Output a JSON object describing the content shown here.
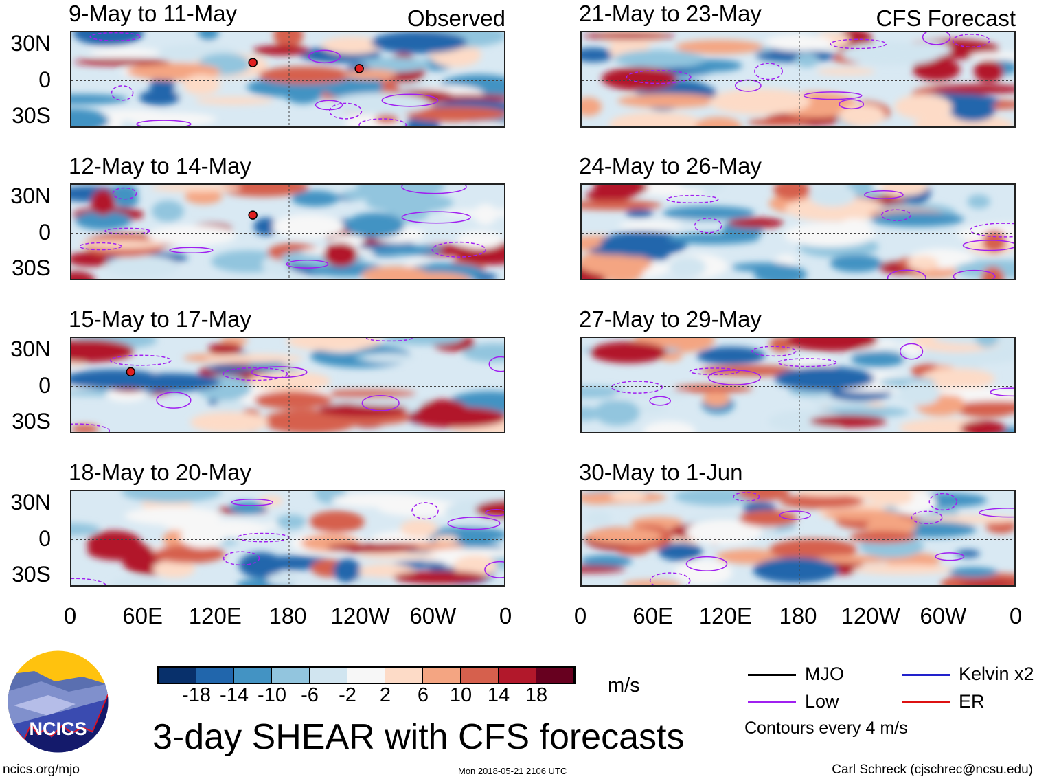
{
  "panels_left": [
    {
      "title": "9-May to 11-May",
      "label": "Observed",
      "storms": [
        {
          "lon": 150,
          "lat": 15
        },
        {
          "lon": 238,
          "lat": 10
        }
      ]
    },
    {
      "title": "12-May to 14-May",
      "label": "",
      "storms": [
        {
          "lon": 150,
          "lat": 15
        }
      ]
    },
    {
      "title": "15-May to 17-May",
      "label": "",
      "storms": [
        {
          "lon": 49,
          "lat": 12
        }
      ]
    },
    {
      "title": "18-May to 20-May",
      "label": "",
      "storms": []
    }
  ],
  "panels_right": [
    {
      "title": "21-May to 23-May",
      "label": "CFS Forecast"
    },
    {
      "title": "24-May to 26-May",
      "label": ""
    },
    {
      "title": "27-May to 29-May",
      "label": ""
    },
    {
      "title": "30-May to 1-Jun",
      "label": ""
    }
  ],
  "lat_labels": [
    "30N",
    "0",
    "30S"
  ],
  "lon_labels": [
    "0",
    "60E",
    "120E",
    "180",
    "120W",
    "60W",
    "0"
  ],
  "colorbar": {
    "colors": [
      "#08306b",
      "#2166ac",
      "#4393c3",
      "#92c5de",
      "#d1e5f0",
      "#f7f7f7",
      "#fddbc7",
      "#f4a582",
      "#d6604d",
      "#b2182b",
      "#67001f"
    ],
    "ticks": [
      "-18",
      "-14",
      "-10",
      "-6",
      "-2",
      "2",
      "6",
      "10",
      "14",
      "18"
    ],
    "units": "m/s"
  },
  "title": "3-day SHEAR with CFS forecasts",
  "legend": [
    {
      "label": "MJO",
      "color": "#000000"
    },
    {
      "label": "Kelvin x2",
      "color": "#2222cc"
    },
    {
      "label": "Low",
      "color": "#a020f0"
    },
    {
      "label": "ER",
      "color": "#dd1111"
    }
  ],
  "contour_note": "Contours every 4 m/s",
  "logo_text": "NCICS",
  "footer": {
    "url": "ncics.org/mjo",
    "timestamp": "Mon 2018-05-21 2106 UTC",
    "author": "Carl Schreck (cjschrec@ncsu.edu)"
  }
}
